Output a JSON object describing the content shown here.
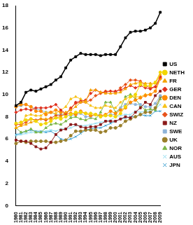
{
  "chart_data": {
    "type": "line",
    "categories": [
      "1980",
      "1981",
      "1982",
      "1983",
      "1984",
      "1985",
      "1986",
      "1987",
      "1988",
      "1989",
      "1990",
      "1991",
      "1992",
      "1993",
      "1994",
      "1995",
      "1996",
      "1997",
      "1998",
      "1999",
      "2000",
      "2001",
      "2002",
      "2003",
      "2004",
      "2005",
      "2006",
      "2007",
      "2008",
      "2009"
    ],
    "series": [
      {
        "name": "US",
        "color": "#000000",
        "marker": "square",
        "values": [
          9.0,
          9.3,
          10.2,
          10.4,
          10.3,
          10.5,
          10.7,
          10.9,
          11.3,
          11.6,
          12.4,
          13.1,
          13.4,
          13.7,
          13.6,
          13.6,
          13.6,
          13.5,
          13.6,
          13.6,
          13.6,
          14.3,
          15.1,
          15.6,
          15.7,
          15.7,
          15.8,
          16.0,
          16.4,
          17.4
        ]
      },
      {
        "name": "NETH",
        "color": "#f2d600",
        "marker": "circle",
        "values": [
          7.4,
          7.5,
          7.7,
          7.8,
          7.6,
          7.3,
          7.4,
          7.6,
          7.9,
          7.8,
          8.0,
          8.2,
          8.4,
          8.4,
          8.3,
          8.3,
          8.2,
          8.0,
          8.1,
          8.1,
          8.0,
          8.3,
          8.9,
          9.8,
          10.0,
          10.9,
          10.8,
          10.8,
          11.1,
          12.0
        ]
      },
      {
        "name": "FR",
        "color": "#f5a300",
        "marker": "triangle",
        "values": [
          7.0,
          7.2,
          7.3,
          7.5,
          7.6,
          7.8,
          7.8,
          7.8,
          7.9,
          8.0,
          8.4,
          8.6,
          8.9,
          9.3,
          9.4,
          10.4,
          10.4,
          10.2,
          10.1,
          10.1,
          10.1,
          10.2,
          10.5,
          10.9,
          11.0,
          11.1,
          11.0,
          11.0,
          11.0,
          11.8
        ]
      },
      {
        "name": "GER",
        "color": "#e0301e",
        "marker": "diamond",
        "values": [
          8.4,
          8.6,
          8.7,
          8.6,
          8.8,
          8.8,
          8.8,
          8.9,
          9.1,
          8.6,
          8.3,
          8.7,
          9.3,
          9.4,
          9.5,
          10.1,
          10.4,
          10.2,
          10.2,
          10.3,
          10.3,
          10.4,
          10.6,
          10.8,
          10.6,
          10.8,
          10.6,
          10.5,
          10.7,
          11.6
        ]
      },
      {
        "name": "DEN",
        "color": "#ff8c00",
        "marker": "circle",
        "values": [
          8.9,
          9.1,
          9.1,
          8.9,
          8.5,
          8.5,
          8.2,
          8.4,
          8.6,
          8.4,
          8.3,
          8.3,
          8.2,
          8.5,
          8.3,
          8.1,
          8.2,
          8.1,
          8.2,
          8.5,
          8.3,
          8.6,
          8.8,
          9.3,
          9.5,
          9.7,
          9.9,
          10.0,
          10.3,
          11.5
        ]
      },
      {
        "name": "CAN",
        "color": "#f7c31a",
        "marker": "triangle",
        "values": [
          7.0,
          7.2,
          8.1,
          8.2,
          8.1,
          8.1,
          8.4,
          8.4,
          8.3,
          8.6,
          8.9,
          9.6,
          9.8,
          9.6,
          9.3,
          9.0,
          8.8,
          8.8,
          9.0,
          8.9,
          8.8,
          9.3,
          9.6,
          9.8,
          9.8,
          9.8,
          10.0,
          10.0,
          10.3,
          11.4
        ]
      },
      {
        "name": "SWIZ",
        "color": "#e8521a",
        "marker": "diamond",
        "values": [
          7.3,
          7.3,
          7.5,
          7.8,
          7.7,
          7.8,
          7.7,
          7.9,
          8.1,
          8.1,
          8.2,
          8.8,
          9.2,
          9.3,
          9.3,
          9.5,
          9.9,
          10.1,
          10.3,
          10.3,
          10.2,
          10.6,
          10.9,
          11.3,
          11.3,
          11.2,
          10.8,
          10.6,
          10.7,
          11.4
        ]
      },
      {
        "name": "NZ",
        "color": "#8b1a1a",
        "marker": "square",
        "values": [
          5.9,
          5.8,
          5.8,
          5.6,
          5.3,
          5.1,
          5.2,
          5.7,
          6.4,
          6.8,
          6.9,
          7.3,
          7.3,
          7.1,
          7.0,
          7.1,
          7.1,
          7.3,
          7.6,
          7.6,
          7.6,
          7.8,
          8.0,
          7.9,
          8.4,
          8.8,
          9.3,
          9.1,
          9.9,
          10.3
        ]
      },
      {
        "name": "SWE",
        "color": "#8fb4d9",
        "marker": "square",
        "values": [
          8.9,
          9.0,
          9.1,
          8.9,
          8.7,
          8.6,
          8.4,
          8.4,
          8.2,
          8.2,
          8.2,
          8.1,
          8.2,
          8.3,
          8.0,
          8.0,
          8.2,
          8.0,
          8.1,
          8.2,
          8.2,
          8.8,
          9.1,
          9.2,
          9.1,
          9.1,
          8.9,
          8.9,
          9.2,
          9.9
        ]
      },
      {
        "name": "UK",
        "color": "#9a7f2a",
        "marker": "circle",
        "values": [
          5.6,
          5.8,
          5.7,
          5.8,
          5.8,
          5.8,
          5.8,
          5.7,
          5.7,
          5.8,
          5.9,
          6.3,
          6.7,
          6.7,
          6.8,
          6.8,
          6.8,
          6.6,
          6.7,
          7.0,
          7.0,
          7.2,
          7.6,
          7.8,
          8.0,
          8.2,
          8.4,
          8.4,
          8.8,
          9.8
        ]
      },
      {
        "name": "NOR",
        "color": "#7ab648",
        "marker": "triangle",
        "values": [
          7.0,
          6.6,
          6.7,
          6.9,
          6.6,
          6.6,
          7.0,
          7.3,
          7.4,
          7.3,
          7.6,
          7.9,
          8.0,
          7.8,
          7.7,
          7.9,
          7.8,
          8.4,
          9.3,
          9.3,
          8.4,
          8.8,
          9.8,
          10.0,
          9.6,
          9.0,
          8.6,
          8.7,
          8.6,
          9.6
        ]
      },
      {
        "name": "AUS",
        "color": "#8fdcef",
        "marker": "cross",
        "values": [
          6.3,
          6.4,
          6.5,
          6.6,
          6.6,
          6.6,
          6.7,
          6.8,
          6.7,
          6.9,
          6.9,
          7.0,
          7.2,
          7.2,
          7.2,
          7.3,
          7.4,
          7.5,
          7.6,
          7.7,
          8.0,
          8.1,
          8.2,
          8.2,
          8.5,
          8.4,
          8.5,
          8.5,
          8.7,
          9.1
        ]
      },
      {
        "name": "JPN",
        "color": "#3a9fd0",
        "marker": "cross",
        "values": [
          6.4,
          6.5,
          6.7,
          6.8,
          6.7,
          6.7,
          6.6,
          6.7,
          6.4,
          6.0,
          5.9,
          6.0,
          6.2,
          6.5,
          6.8,
          6.9,
          7.0,
          7.0,
          7.2,
          7.4,
          7.6,
          7.8,
          7.9,
          8.0,
          8.0,
          8.2,
          8.1,
          8.1,
          8.5,
          8.5
        ]
      }
    ],
    "ylim": [
      0,
      18
    ],
    "yticks": [
      0,
      2,
      4,
      6,
      8,
      10,
      12,
      14,
      16,
      18
    ],
    "grid": false,
    "legend": "right"
  }
}
